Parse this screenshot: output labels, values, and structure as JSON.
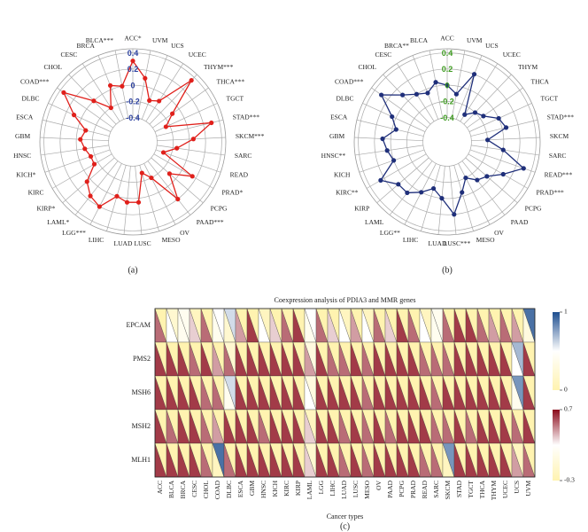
{
  "chart_data": [
    {
      "type": "radar",
      "panel_label": "(a)",
      "categories": [
        "ACC*",
        "UVM",
        "UCS",
        "UCEC",
        "THYM***",
        "THCA***",
        "TGCT",
        "STAD***",
        "SKCM***",
        "SARC",
        "READ",
        "PRAD*",
        "PCPG",
        "PAAD***",
        "OV",
        "MESO",
        "LUSC",
        "LUAD",
        "LIHC",
        "LGG***",
        "LAML*",
        "KIRP*",
        "KIRC",
        "KICH*",
        "HNSC",
        "GBM",
        "ESCA",
        "DLBC",
        "COAD***",
        "CHOL",
        "CESC",
        "BRCA",
        "BLCA***"
      ],
      "values": [
        0.3,
        0.1,
        -0.15,
        -0.1,
        0.35,
        -0.1,
        -0.25,
        0.3,
        0.05,
        -0.15,
        -0.3,
        0.15,
        -0.1,
        0.2,
        -0.2,
        -0.3,
        0.05,
        0.05,
        0.0,
        0.2,
        0.15,
        0.05,
        -0.15,
        -0.15,
        -0.1,
        -0.05,
        -0.1,
        0.1,
        0.35,
        0.0,
        -0.2,
        0.05,
        0.0
      ],
      "color": "#e0201b",
      "rlim": [
        -0.7,
        0.45
      ],
      "rticks": [
        -0.4,
        -0.2,
        0,
        0.2,
        0.4
      ],
      "tick_color": "#2a3f9e"
    },
    {
      "type": "radar",
      "panel_label": "(b)",
      "categories": [
        "ACC",
        "UVM",
        "UCS",
        "UCEC",
        "THYM",
        "THCA",
        "TGCT",
        "STAD***",
        "SKCM",
        "SARC",
        "READ***",
        "PRAD***",
        "PCPG",
        "PAAD",
        "OV",
        "MESO",
        "LUSC***",
        "LUAD",
        "LIHC",
        "LGG**",
        "LAML",
        "KIRP",
        "KIRC**",
        "KICH",
        "HNSC**",
        "GBM",
        "ESCA",
        "DLBC",
        "COAD***",
        "CHOL",
        "CESC",
        "BRCA**",
        "BLCA"
      ],
      "values": [
        0.0,
        -0.1,
        0.2,
        -0.3,
        -0.2,
        -0.15,
        0.0,
        0.05,
        -0.2,
        0.0,
        0.3,
        0.1,
        -0.05,
        -0.1,
        -0.2,
        -0.05,
        0.2,
        0.0,
        -0.1,
        0.0,
        0.1,
        0.1,
        0.25,
        0.0,
        0.05,
        0.1,
        -0.05,
        0.05,
        0.3,
        0.1,
        0.0,
        -0.05,
        0.05
      ],
      "color": "#1f2f7a",
      "rlim": [
        -0.7,
        0.45
      ],
      "rticks": [
        -0.4,
        -0.2,
        0,
        0.2,
        0.4
      ],
      "tick_color": "#3c9a1e"
    },
    {
      "type": "heatmap",
      "title": "Coexpression analysis of PDIA3 and MMR genes",
      "x_label": "Cancer types",
      "panel_label": "(c)",
      "categories": [
        "ACC",
        "BLCA",
        "BRCA",
        "CESC",
        "CHOL",
        "COAD",
        "DLBC",
        "ESCA",
        "GBM",
        "HNSC",
        "KICH",
        "KIRC",
        "KIRP",
        "LAML",
        "LGG",
        "LIHC",
        "LUAD",
        "LUSC",
        "MESO",
        "OV",
        "PAAD",
        "PCPG",
        "PRAD",
        "READ",
        "SARC",
        "SKCM",
        "STAD",
        "TGCT",
        "THCA",
        "THYM",
        "UCEC",
        "UCS",
        "UVM"
      ],
      "rows": [
        "EPCAM",
        "PMS2",
        "MSH6",
        "MSH2",
        "MLH1"
      ],
      "correlation": [
        [
          0.5,
          0.2,
          0.1,
          0.3,
          0.5,
          0.1,
          -0.1,
          0.4,
          0.6,
          0.2,
          0.3,
          0.5,
          0.6,
          0.1,
          0.5,
          0.3,
          0.2,
          0.4,
          0.2,
          0.5,
          0.3,
          0.6,
          0.5,
          0.2,
          0.1,
          0.5,
          0.6,
          0.6,
          0.5,
          0.4,
          0.5,
          0.4,
          0.0
        ],
        [
          0.6,
          0.6,
          0.6,
          0.5,
          0.6,
          0.4,
          0.5,
          0.6,
          0.6,
          0.6,
          0.6,
          0.6,
          0.6,
          0.4,
          0.6,
          0.5,
          0.5,
          0.6,
          0.5,
          0.6,
          0.6,
          0.6,
          0.6,
          0.5,
          0.5,
          0.5,
          0.6,
          0.6,
          0.6,
          0.6,
          0.6,
          0.2,
          0.6
        ],
        [
          0.6,
          0.6,
          0.6,
          0.6,
          0.5,
          0.5,
          0.1,
          0.6,
          0.6,
          0.6,
          0.6,
          0.6,
          0.6,
          0.2,
          0.6,
          0.6,
          0.6,
          0.6,
          0.5,
          0.6,
          0.6,
          0.6,
          0.6,
          0.6,
          0.5,
          0.6,
          0.6,
          0.6,
          0.6,
          0.6,
          0.6,
          0.1,
          0.6
        ],
        [
          0.6,
          0.5,
          0.6,
          0.6,
          0.5,
          0.4,
          0.6,
          0.6,
          0.6,
          0.5,
          0.6,
          0.6,
          0.6,
          0.3,
          0.6,
          0.6,
          0.5,
          0.6,
          0.5,
          0.6,
          0.5,
          0.6,
          0.6,
          0.6,
          0.5,
          0.5,
          0.6,
          0.5,
          0.6,
          0.6,
          0.6,
          0.5,
          0.6
        ],
        [
          0.6,
          0.6,
          0.6,
          0.6,
          0.5,
          -0.2,
          0.5,
          0.6,
          0.6,
          0.6,
          0.6,
          0.6,
          0.6,
          0.3,
          0.6,
          0.6,
          0.5,
          0.6,
          0.5,
          0.6,
          0.6,
          0.6,
          0.6,
          0.5,
          0.5,
          -0.2,
          0.6,
          0.6,
          0.6,
          0.6,
          0.6,
          0.4,
          0.5
        ]
      ],
      "p_values": [
        [
          0,
          0.2,
          0.4,
          0.1,
          0,
          0.5,
          0.6,
          0,
          0,
          0.1,
          0,
          0,
          0,
          0.5,
          0,
          0,
          0.1,
          0,
          0.1,
          0,
          0,
          0,
          0,
          0.1,
          0.4,
          0,
          0,
          0,
          0,
          0,
          0,
          0,
          0.9
        ],
        [
          0,
          0,
          0,
          0,
          0,
          0,
          0.2,
          0,
          0,
          0,
          0,
          0,
          0,
          0.3,
          0,
          0,
          0,
          0,
          0,
          0,
          0,
          0,
          0,
          0,
          0,
          0,
          0,
          0,
          0,
          0,
          0,
          0.7,
          0
        ],
        [
          0,
          0,
          0,
          0,
          0,
          0,
          0.6,
          0,
          0,
          0,
          0,
          0,
          0,
          0.3,
          0,
          0,
          0,
          0,
          0,
          0,
          0,
          0,
          0,
          0,
          0,
          0,
          0,
          0,
          0,
          0,
          0,
          0.8,
          0
        ],
        [
          0,
          0,
          0,
          0,
          0,
          0,
          0,
          0,
          0,
          0,
          0,
          0,
          0,
          0.1,
          0,
          0,
          0,
          0,
          0,
          0,
          0,
          0,
          0,
          0,
          0,
          0,
          0,
          0,
          0,
          0,
          0,
          0,
          0
        ],
        [
          0,
          0,
          0,
          0,
          0,
          0.9,
          0,
          0,
          0,
          0,
          0,
          0,
          0,
          0.2,
          0,
          0,
          0,
          0,
          0,
          0,
          0,
          0,
          0,
          0,
          0,
          0.8,
          0,
          0,
          0,
          0,
          0,
          0.1,
          0
        ]
      ],
      "p_colorbar": {
        "lim": [
          0,
          1
        ],
        "ticks": [
          0,
          1
        ],
        "colors": [
          "#fff3b0",
          "#ffffff",
          "#1d4e8f"
        ]
      },
      "cor_colorbar": {
        "lim": [
          -0.3,
          0.7
        ],
        "ticks": [
          -0.3,
          0.7
        ],
        "colors": [
          "#fff3b0",
          "#ffffff",
          "#8b0a1a"
        ]
      }
    }
  ]
}
